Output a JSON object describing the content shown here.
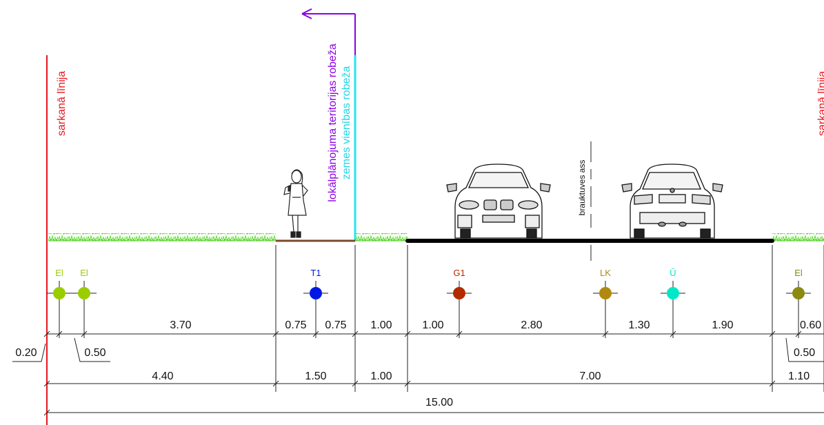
{
  "labels": {
    "red_line": "sarkanā līnija",
    "planning_boundary": "lokālplānojuma teritorijas robeža",
    "land_boundary": "zemes vienības robeža",
    "road_axis": "brauktuves ass"
  },
  "utilities": [
    {
      "code": "El",
      "color": "#9acd00"
    },
    {
      "code": "El",
      "color": "#9acd00"
    },
    {
      "code": "T1",
      "color": "#0018e6"
    },
    {
      "code": "G1",
      "color": "#b22a00"
    },
    {
      "code": "LK",
      "color": "#b08a10"
    },
    {
      "code": "Ū",
      "color": "#00e8c8"
    },
    {
      "code": "El",
      "color": "#8a8a10"
    }
  ],
  "dimensions": {
    "row1": [
      "0.20",
      "3.70",
      "0.75",
      "0.75",
      "1.00",
      "1.00",
      "2.80",
      "1.30",
      "1.90",
      "0.60"
    ],
    "row1_leaders": [
      "0.50",
      "0.50"
    ],
    "row2": [
      "4.40",
      "1.50",
      "1.00",
      "7.00",
      "1.10"
    ],
    "row3": [
      "15.00"
    ]
  },
  "colors": {
    "red_line": "#e8141c",
    "planning_boundary": "#8a00e6",
    "land_boundary": "#22e6f0",
    "grass": "#5adc2a",
    "sidewalk": "#7a4a2e",
    "road": "#000000"
  }
}
